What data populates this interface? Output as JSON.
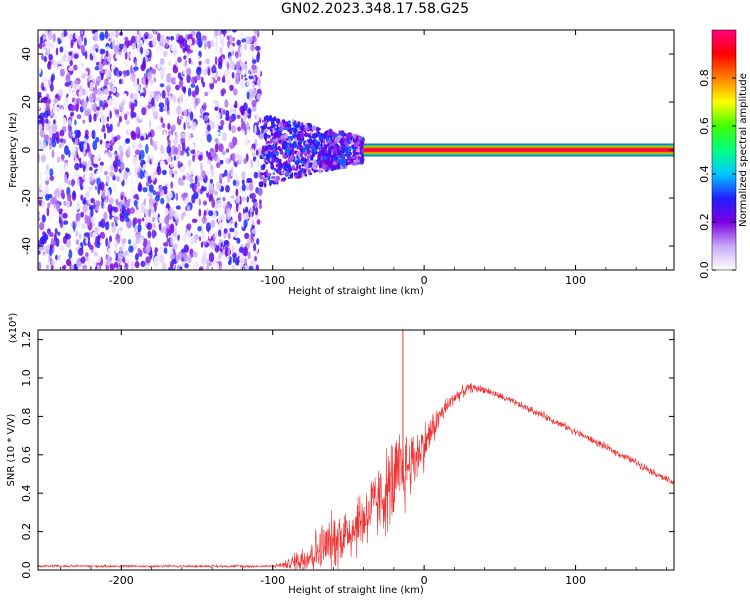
{
  "title": "GN02.2023.348.17.58.G25",
  "colors": {
    "snr_line": "#f03030",
    "spectrogram_background": "#ffffff",
    "frame": "#000000"
  },
  "chart_data": [
    {
      "type": "heatmap",
      "xlabel": "Height of straight line (km)",
      "ylabel": "Frequency (Hz)",
      "xlim": [
        -255,
        165
      ],
      "ylim": [
        -50,
        50
      ],
      "xticks": [
        -200,
        -100,
        0,
        100
      ],
      "xtick_labels": [
        "-200",
        "-100",
        "0",
        "100"
      ],
      "yticks": [
        -40,
        -20,
        0,
        20,
        40
      ],
      "ytick_labels": [
        "-40",
        "-20",
        "0",
        "20",
        "40"
      ],
      "colorbar": {
        "label": "Normalized spectral amplitude",
        "range": [
          0.0,
          1.0
        ],
        "ticks": [
          0.0,
          0.2,
          0.4,
          0.6,
          0.8
        ],
        "tick_labels": [
          "0.0",
          "0.2",
          "0.4",
          "0.6",
          "0.8"
        ],
        "colormap_stops": [
          "#ffffff",
          "#c8a8f8",
          "#7a00e0",
          "#2020ff",
          "#00c8ff",
          "#00ff80",
          "#40ff00",
          "#ffff00",
          "#ff8000",
          "#ff0000",
          "#ff0080"
        ]
      },
      "regions": [
        {
          "x_start": -255,
          "x_end": -108,
          "f_min": -50,
          "f_max": 50,
          "amplitude_min": 0.0,
          "amplitude_max": 0.15
        },
        {
          "x_start": -108,
          "x_end": -40,
          "f_half_width_start": 15,
          "f_half_width_end": 5,
          "amplitude_min": 0.1,
          "amplitude_max": 0.35
        },
        {
          "x_start": -40,
          "x_end": 165,
          "f_center": 0,
          "f_half_width": 1.5,
          "amplitude": 0.95
        }
      ]
    },
    {
      "type": "line",
      "xlabel": "Height of straight line (km)",
      "ylabel": "SNR (10 * V/V)",
      "y_scale_label": "(x10⁴)",
      "xlim": [
        -255,
        165
      ],
      "ylim": [
        0,
        1.25
      ],
      "xticks": [
        -200,
        -100,
        0,
        100
      ],
      "xtick_labels": [
        "-200",
        "-100",
        "0",
        "100"
      ],
      "yticks": [
        0.0,
        0.2,
        0.4,
        0.6,
        0.8,
        1.0,
        1.2
      ],
      "ytick_labels": [
        "0.0",
        "0.2",
        "0.4",
        "0.6",
        "0.8",
        "1.0",
        "1.2"
      ],
      "series": [
        {
          "x": [
            -255,
            -200,
            -150,
            -100,
            -90,
            -80,
            -70,
            -60,
            -50,
            -40,
            -30,
            -20,
            -15,
            -10,
            0,
            10,
            20,
            30,
            40,
            60,
            80,
            100,
            120,
            140,
            165
          ],
          "y": [
            0.02,
            0.02,
            0.02,
            0.02,
            0.03,
            0.06,
            0.1,
            0.15,
            0.2,
            0.27,
            0.36,
            0.45,
            0.5,
            0.55,
            0.65,
            0.8,
            0.9,
            0.95,
            0.94,
            0.87,
            0.8,
            0.72,
            0.64,
            0.56,
            0.45
          ],
          "noise": [
            0.005,
            0.005,
            0.005,
            0.005,
            0.02,
            0.07,
            0.1,
            0.12,
            0.13,
            0.14,
            0.15,
            0.2,
            0.2,
            0.15,
            0.1,
            0.05,
            0.03,
            0.02,
            0.015,
            0.015,
            0.015,
            0.015,
            0.015,
            0.015,
            0.015
          ],
          "spike": {
            "x": -14,
            "y": 1.25
          }
        }
      ]
    }
  ]
}
